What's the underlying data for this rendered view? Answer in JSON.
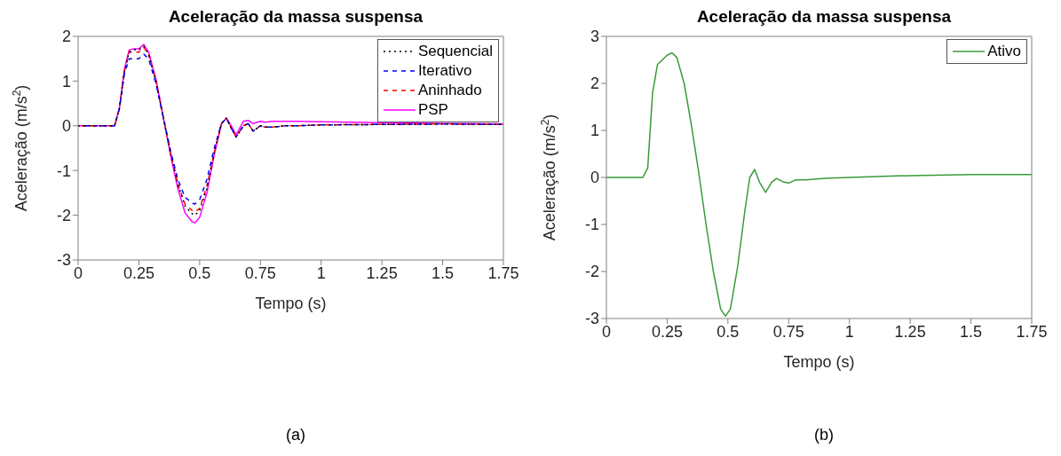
{
  "chart_data": [
    {
      "type": "line",
      "title": "Aceleração da massa suspensa",
      "xlabel": "Tempo (s)",
      "ylabel": "Aceleração (m/s$^{2}$)",
      "xlim": [
        0,
        1.75
      ],
      "xticks": [
        0,
        0.25,
        0.5,
        0.75,
        1,
        1.25,
        1.5,
        1.75
      ],
      "ylim": [
        -3,
        2
      ],
      "yticks": [
        -3,
        -2,
        -1,
        0,
        1,
        2
      ],
      "grid": false,
      "legend": "top right",
      "annotations": [
        "(a)"
      ],
      "x": [
        0,
        0.15,
        0.17,
        0.19,
        0.21,
        0.23,
        0.25,
        0.27,
        0.29,
        0.32,
        0.35,
        0.38,
        0.41,
        0.44,
        0.47,
        0.48,
        0.5,
        0.53,
        0.56,
        0.59,
        0.61,
        0.63,
        0.65,
        0.68,
        0.7,
        0.72,
        0.75,
        0.77,
        0.8,
        0.85,
        0.9,
        1.0,
        1.25,
        1.5,
        1.75
      ],
      "series": [
        {
          "name": "Sequencial",
          "color": "#000000",
          "line_style": "dotted",
          "values": [
            0,
            0,
            0.4,
            1.2,
            1.65,
            1.7,
            1.7,
            1.78,
            1.6,
            1.0,
            0.2,
            -0.6,
            -1.3,
            -1.8,
            -1.97,
            -2.0,
            -1.9,
            -1.4,
            -0.6,
            0.05,
            0.17,
            -0.05,
            -0.25,
            0.0,
            0.05,
            -0.12,
            0.0,
            -0.03,
            -0.03,
            0.0,
            0.0,
            0.02,
            0.03,
            0.04,
            0.03
          ]
        },
        {
          "name": "Iterativo",
          "color": "#0000ff",
          "line_style": "dashed",
          "values": [
            0,
            0,
            0.38,
            1.15,
            1.5,
            1.5,
            1.5,
            1.6,
            1.5,
            0.95,
            0.2,
            -0.55,
            -1.2,
            -1.6,
            -1.73,
            -1.75,
            -1.65,
            -1.2,
            -0.5,
            0.05,
            0.17,
            -0.05,
            -0.25,
            0.0,
            0.05,
            -0.12,
            0.0,
            -0.03,
            -0.03,
            0.0,
            0.0,
            0.02,
            0.03,
            0.04,
            0.03
          ]
        },
        {
          "name": "Aninhado",
          "color": "#ff0000",
          "line_style": "dashed",
          "values": [
            0,
            0,
            0.4,
            1.2,
            1.65,
            1.65,
            1.65,
            1.75,
            1.6,
            1.0,
            0.2,
            -0.6,
            -1.3,
            -1.75,
            -1.9,
            -1.92,
            -1.85,
            -1.35,
            -0.6,
            0.05,
            0.17,
            -0.05,
            -0.25,
            0.0,
            0.05,
            -0.12,
            0.0,
            -0.03,
            -0.03,
            0.0,
            0.0,
            0.02,
            0.03,
            0.04,
            0.03
          ]
        },
        {
          "name": "PSP",
          "color": "#ff00ff",
          "line_style": "solid",
          "values": [
            0,
            0,
            0.4,
            1.25,
            1.7,
            1.72,
            1.72,
            1.82,
            1.65,
            1.05,
            0.2,
            -0.65,
            -1.4,
            -1.95,
            -2.15,
            -2.17,
            -2.05,
            -1.5,
            -0.65,
            0.05,
            0.17,
            0.0,
            -0.2,
            0.1,
            0.12,
            0.05,
            0.1,
            0.08,
            0.1,
            0.1,
            0.1,
            0.09,
            0.07,
            0.05,
            0.04
          ]
        }
      ]
    },
    {
      "type": "line",
      "title": "Aceleração da massa suspensa",
      "xlabel": "Tempo (s)",
      "ylabel": "Aceleração (m/s$^{2}$)",
      "xlim": [
        0,
        1.75
      ],
      "xticks": [
        0,
        0.25,
        0.5,
        0.75,
        1,
        1.25,
        1.5,
        1.75
      ],
      "ylim": [
        -3,
        3
      ],
      "yticks": [
        -3,
        -2,
        -1,
        0,
        1,
        2,
        3
      ],
      "grid": false,
      "legend": "top right",
      "annotations": [
        "(b)"
      ],
      "x": [
        0,
        0.15,
        0.17,
        0.19,
        0.21,
        0.23,
        0.25,
        0.27,
        0.29,
        0.32,
        0.35,
        0.38,
        0.41,
        0.44,
        0.47,
        0.49,
        0.51,
        0.54,
        0.57,
        0.59,
        0.61,
        0.63,
        0.655,
        0.68,
        0.7,
        0.73,
        0.75,
        0.78,
        0.82,
        0.9,
        1.0,
        1.25,
        1.5,
        1.75
      ],
      "series": [
        {
          "name": "Ativo",
          "color": "#3a9a3a",
          "line_style": "solid",
          "values": [
            0,
            0,
            0.2,
            1.8,
            2.4,
            2.5,
            2.6,
            2.65,
            2.55,
            2.0,
            1.1,
            0.1,
            -1.0,
            -2.0,
            -2.8,
            -2.95,
            -2.8,
            -1.9,
            -0.7,
            0.0,
            0.17,
            -0.1,
            -0.32,
            -0.1,
            -0.02,
            -0.1,
            -0.12,
            -0.05,
            -0.05,
            -0.02,
            0.0,
            0.04,
            0.06,
            0.06
          ]
        }
      ]
    }
  ]
}
